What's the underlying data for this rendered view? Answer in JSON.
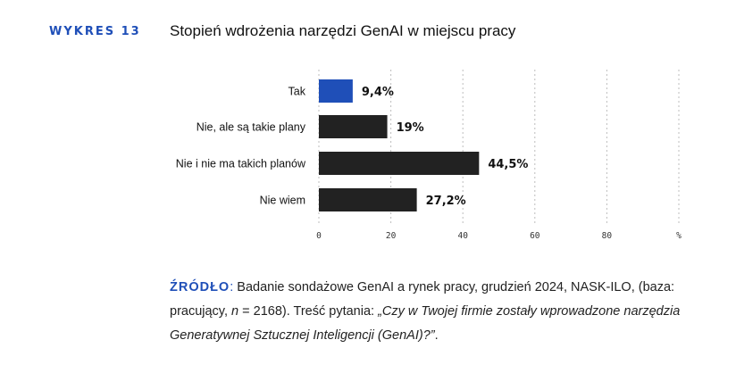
{
  "header": {
    "figure_label": "WYKRES 13",
    "title": "Stopień wdrożenia narzędzi GenAI w miejscu pracy"
  },
  "chart_data": {
    "type": "bar",
    "orientation": "horizontal",
    "categories": [
      "Tak",
      "Nie, ale są takie plany",
      "Nie i nie ma takich planów",
      "Nie wiem"
    ],
    "values": [
      9.4,
      19,
      44.5,
      27.2
    ],
    "value_labels": [
      "9,4%",
      "19%",
      "44,5%",
      "27,2%"
    ],
    "colors": [
      "#1f4fb8",
      "#222222",
      "#222222",
      "#222222"
    ],
    "xlim": [
      0,
      100
    ],
    "x_ticks": [
      "0",
      "20",
      "40",
      "60",
      "80",
      "%"
    ],
    "grid": "vertical dashed"
  },
  "source": {
    "label": "ŹRÓDŁO",
    "colon": ":",
    "text_1": " Badanie sondażowe GenAI a rynek pracy, grudzień 2024, NASK-ILO, (baza: pracujący, ",
    "n_symbol": "n",
    "text_2": " = 2168). Treść pytania: ",
    "question": "„Czy w Twojej firmie zostały wprowadzone narzędzia Generatywnej Sztucznej Inteligencji (GenAI)?”",
    "text_3": "."
  }
}
